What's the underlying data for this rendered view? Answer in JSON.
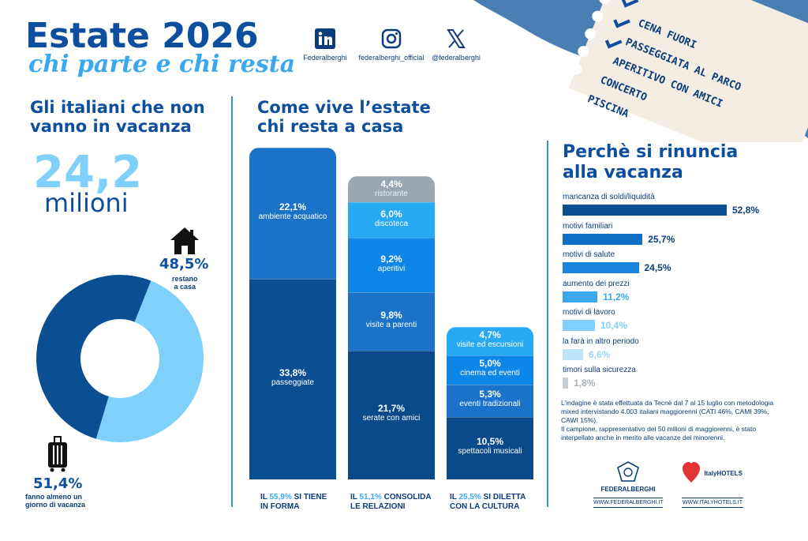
{
  "header": {
    "title": "Estate 2026",
    "subtitle": "chi parte e chi resta"
  },
  "social": [
    {
      "icon": "linkedin-icon",
      "label": "Federalberghi"
    },
    {
      "icon": "instagram-icon",
      "label": "federalberghi_official"
    },
    {
      "icon": "x-icon",
      "label": "@federalberghi"
    }
  ],
  "ticket": {
    "items": [
      "CENA FUORI",
      "PASSEGGIATA AL PARCO",
      "APERITIVO CON AMICI",
      "CONCERTO",
      "PISCINA"
    ]
  },
  "left": {
    "heading_line1": "Gli italiani che non",
    "heading_line2": "vanno in vacanza",
    "big_value": "24,2",
    "big_unit": "milioni",
    "stay": {
      "pct": "48,5%",
      "label_line1": "restano",
      "label_line2": "a casa",
      "icon": "house-icon"
    },
    "go": {
      "pct": "51,4%",
      "label_line1": "fanno almeno un",
      "label_line2": "giorno di vacanza",
      "icon": "suitcase-icon"
    }
  },
  "middle": {
    "heading_line1": "Come vive l’estate",
    "heading_line2": "chi resta a casa",
    "captions": [
      {
        "pre": "IL ",
        "hl": "55,9%",
        "post": " SI TIENE",
        "line2": "IN FORMA"
      },
      {
        "pre": "IL ",
        "hl": "51,1%",
        "post": " CONSOLIDA",
        "line2": "LE RELAZIONI"
      },
      {
        "pre": "IL ",
        "hl": "25,5%",
        "post": " SI DILETTA",
        "line2": "CON LA CULTURA"
      }
    ]
  },
  "right": {
    "heading_line1": "Perchè si rinuncia",
    "heading_line2": "alla vacanza"
  },
  "note": {
    "line1": "L’indagine è stata effettuata da Tecnè dal 7 al 15 luglio con metodologia mixed intervistando 4.003 italiani maggiorenni (CATI 46%, CAMI 39%, CAWI 15%).",
    "line2": "Il campione, rappresentativo dei 50 milioni di maggiorenni, è stato interpellato anche in merito alle vacanze dei minorenni."
  },
  "logos": {
    "federalberghi": {
      "name": "FEDERALBERGHI",
      "url": "WWW.FEDERALBERGHI.IT"
    },
    "italyhotels": {
      "name": "ItalyHOTELS",
      "url": "WWW.ITALYHOTELS.IT"
    }
  },
  "colors": {
    "dark": "#0b4f93",
    "darker": "#0a4a8a",
    "mid": "#1a73c8",
    "bright": "#0e86e8",
    "light": "#27a9f3",
    "pale": "#7fd0fb",
    "gray": "#9aa7b3"
  },
  "chart_data": [
    {
      "type": "pie",
      "labels": [
        "restano a casa",
        "fanno almeno un giorno di vacanza"
      ],
      "values": [
        48.5,
        51.4
      ],
      "colors": [
        "#7fd0fb",
        "#0b4f93"
      ]
    },
    {
      "type": "bar",
      "stacked": true,
      "series": [
        {
          "segments": [
            {
              "label": "ambiente acquatico",
              "value": 22.1,
              "display": "22,1%"
            },
            {
              "label": "passeggiate",
              "value": 33.8,
              "display": "33,8%"
            }
          ]
        },
        {
          "segments": [
            {
              "label": "ristorante",
              "value": 4.4,
              "display": "4,4%"
            },
            {
              "label": "discoteca",
              "value": 6.0,
              "display": "6,0%"
            },
            {
              "label": "aperitivi",
              "value": 9.2,
              "display": "9,2%"
            },
            {
              "label": "visite a parenti",
              "value": 9.8,
              "display": "9,8%"
            },
            {
              "label": "serate con amici",
              "value": 21.7,
              "display": "21,7%"
            }
          ]
        },
        {
          "segments": [
            {
              "label": "visite ed escursioni",
              "value": 4.7,
              "display": "4,7%"
            },
            {
              "label": "cinema ed eventi",
              "value": 5.0,
              "display": "5,0%"
            },
            {
              "label": "eventi tradizionali",
              "value": 5.3,
              "display": "5,3%"
            },
            {
              "label": "spettacoli musicali",
              "value": 10.5,
              "display": "10,5%"
            }
          ]
        }
      ]
    },
    {
      "type": "bar",
      "orientation": "horizontal",
      "categories": [
        "mancanza di soldi/liquidità",
        "motivi familiari",
        "motivi di salute",
        "aumento dei prezzi",
        "motivi di lavoro",
        "la farà in altro periodo",
        "timori sulla sicurezza"
      ],
      "values": [
        52.8,
        25.7,
        24.5,
        11.2,
        10.4,
        6.6,
        1.8
      ],
      "displays": [
        "52,8%",
        "25,7%",
        "24,5%",
        "11,2%",
        "10,4%",
        "6,6%",
        "1,8%"
      ],
      "colors": [
        "#0b4f93",
        "#0e6fc4",
        "#1a86e0",
        "#3aa8f0",
        "#7fd0fb",
        "#bde6fb",
        "#c9ced4"
      ]
    }
  ]
}
